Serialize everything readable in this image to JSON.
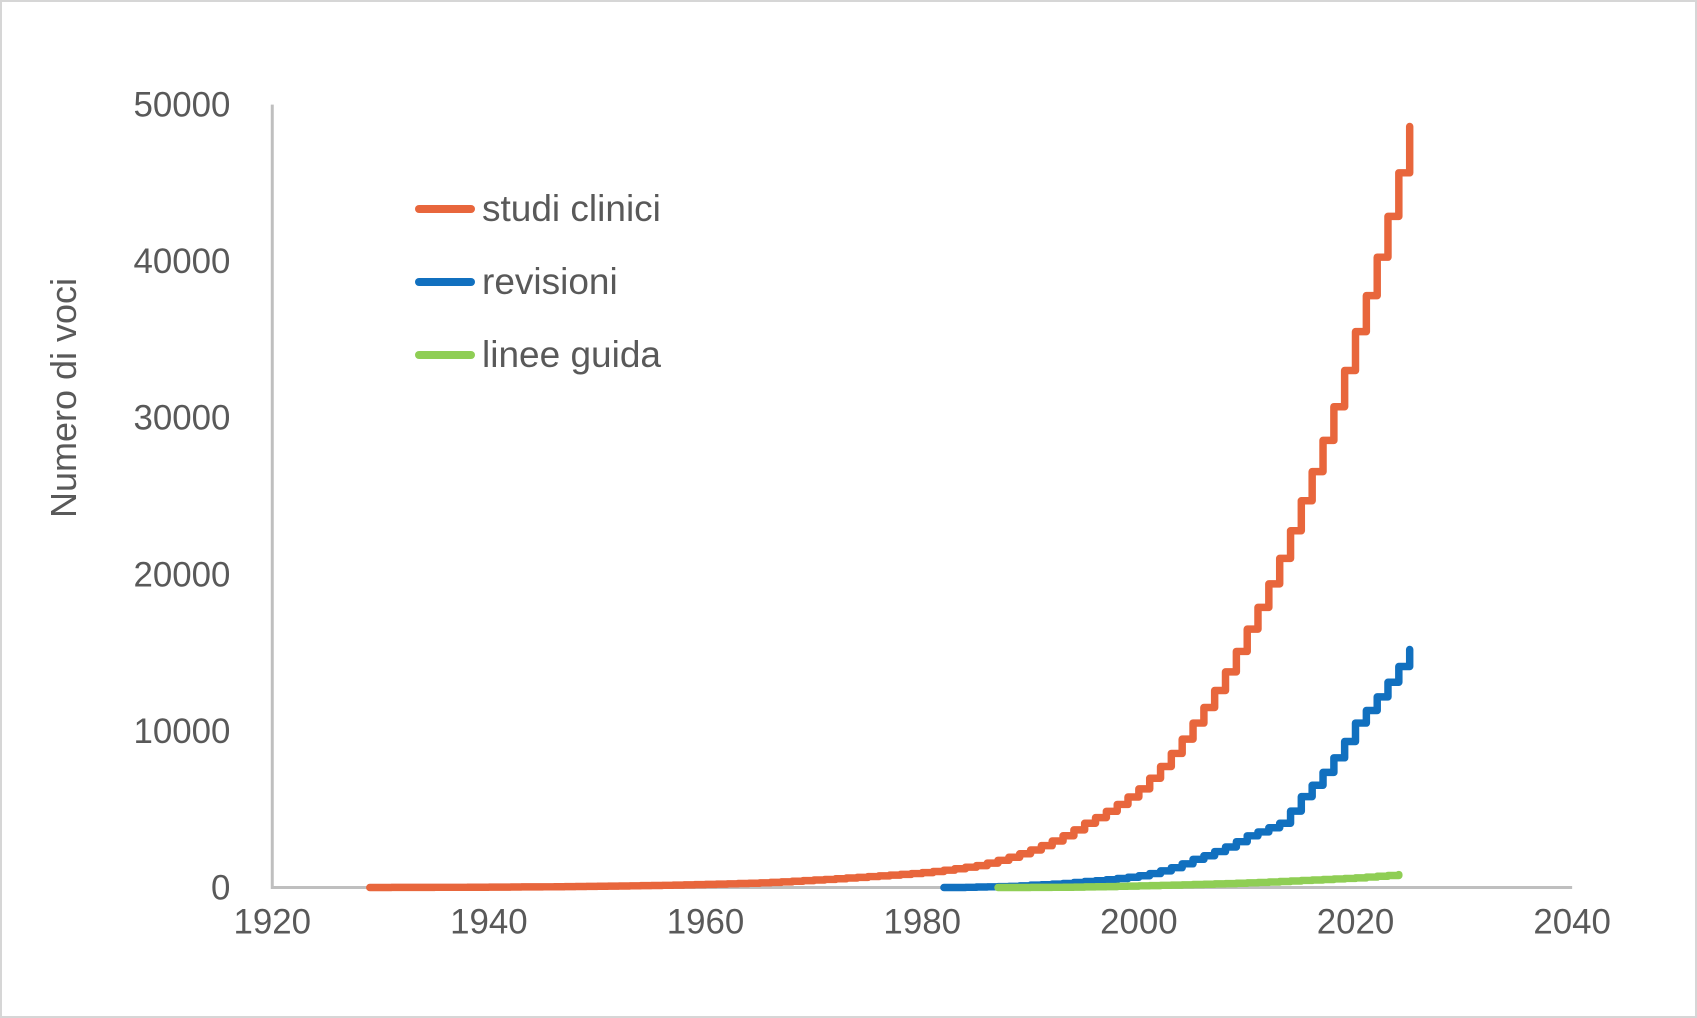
{
  "chart_data": {
    "type": "line",
    "title": "",
    "xlabel": "",
    "ylabel": "Numero di voci",
    "xlim": [
      1920,
      2040
    ],
    "ylim": [
      0,
      50000
    ],
    "x_ticks": [
      "1920",
      "1940",
      "1960",
      "1980",
      "2000",
      "2020",
      "2040"
    ],
    "y_ticks": [
      "0",
      "10000",
      "20000",
      "30000",
      "40000",
      "50000"
    ],
    "grid": false,
    "step": true,
    "legend_position": "upper-left-inside",
    "axis_color": "#BFBFBF",
    "text_color": "#595959",
    "series": [
      {
        "name": "studi clinici",
        "color": "#E8663C",
        "points": [
          [
            1929,
            2
          ],
          [
            1935,
            10
          ],
          [
            1940,
            25
          ],
          [
            1945,
            45
          ],
          [
            1950,
            80
          ],
          [
            1955,
            130
          ],
          [
            1960,
            200
          ],
          [
            1965,
            300
          ],
          [
            1970,
            480
          ],
          [
            1975,
            700
          ],
          [
            1980,
            950
          ],
          [
            1985,
            1400
          ],
          [
            1990,
            2400
          ],
          [
            1995,
            4100
          ],
          [
            2000,
            6300
          ],
          [
            2005,
            10500
          ],
          [
            2010,
            16500
          ],
          [
            2015,
            24700
          ],
          [
            2020,
            35500
          ],
          [
            2025,
            48600
          ]
        ]
      },
      {
        "name": "revisioni",
        "color": "#1170BF",
        "points": [
          [
            1982,
            1
          ],
          [
            1985,
            30
          ],
          [
            1990,
            150
          ],
          [
            1995,
            380
          ],
          [
            2000,
            750
          ],
          [
            2005,
            1800
          ],
          [
            2010,
            3300
          ],
          [
            2013,
            4100
          ],
          [
            2015,
            5800
          ],
          [
            2020,
            10500
          ],
          [
            2025,
            15200
          ]
        ]
      },
      {
        "name": "linee guida",
        "color": "#8FCE55",
        "points": [
          [
            1987,
            1
          ],
          [
            1995,
            40
          ],
          [
            2000,
            110
          ],
          [
            2005,
            190
          ],
          [
            2010,
            300
          ],
          [
            2015,
            450
          ],
          [
            2020,
            620
          ],
          [
            2024,
            830
          ]
        ]
      }
    ]
  }
}
